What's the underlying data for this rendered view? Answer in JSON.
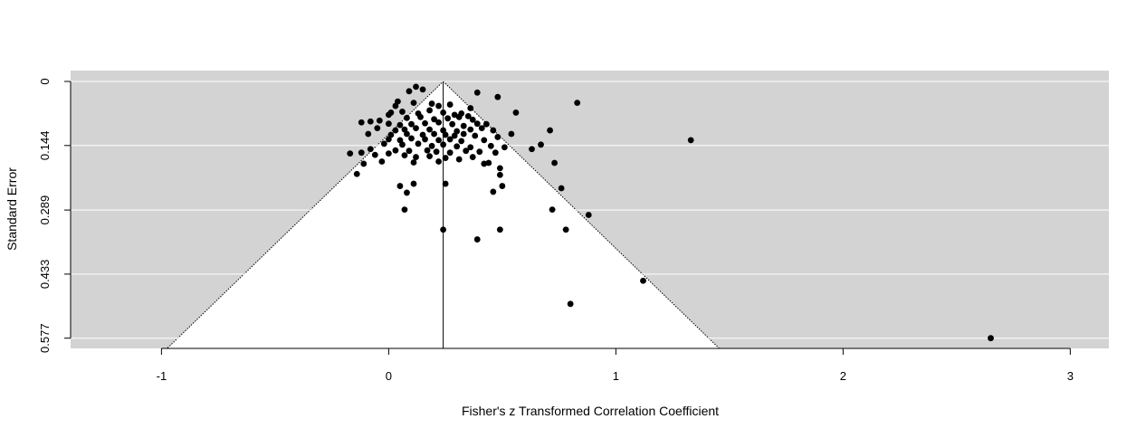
{
  "chart_data": {
    "type": "scatter",
    "subtype": "funnel-plot",
    "title": "",
    "xlabel": "Fisher's z Transformed Correlation Coefficient",
    "ylabel": "Standard Error",
    "xlim": [
      -1.4,
      3.17
    ],
    "ylim": [
      0,
      0.6
    ],
    "y_reversed": true,
    "x_ticks": [
      -1,
      0,
      1,
      2,
      3
    ],
    "x_tick_labels": [
      "-1",
      "0",
      "1",
      "2",
      "3"
    ],
    "y_ticks": [
      0,
      0.144,
      0.289,
      0.433,
      0.577
    ],
    "y_tick_labels": [
      "0",
      "0.144",
      "0.289",
      "0.433",
      "0.577"
    ],
    "summary_estimate": 0.24,
    "funnel_z": 1.96,
    "grid": true,
    "colors": {
      "panel_background": "#d3d3d3",
      "funnel_interior": "#ffffff",
      "gridline": "#ffffff",
      "points": "#000000"
    },
    "points": [
      {
        "x": 0.12,
        "y": 0.012
      },
      {
        "x": 0.15,
        "y": 0.018
      },
      {
        "x": 0.09,
        "y": 0.022
      },
      {
        "x": 0.39,
        "y": 0.025
      },
      {
        "x": 0.48,
        "y": 0.035
      },
      {
        "x": 0.83,
        "y": 0.048
      },
      {
        "x": 0.04,
        "y": 0.045
      },
      {
        "x": 0.03,
        "y": 0.055
      },
      {
        "x": 0.11,
        "y": 0.048
      },
      {
        "x": 0.19,
        "y": 0.05
      },
      {
        "x": 0.22,
        "y": 0.055
      },
      {
        "x": 0.27,
        "y": 0.052
      },
      {
        "x": 0.01,
        "y": 0.07
      },
      {
        "x": 0.06,
        "y": 0.068
      },
      {
        "x": 0.13,
        "y": 0.072
      },
      {
        "x": 0.18,
        "y": 0.065
      },
      {
        "x": 0.24,
        "y": 0.07
      },
      {
        "x": 0.29,
        "y": 0.075
      },
      {
        "x": 0.32,
        "y": 0.072
      },
      {
        "x": 0.36,
        "y": 0.06
      },
      {
        "x": 0.56,
        "y": 0.07
      },
      {
        "x": 0.0,
        "y": 0.075
      },
      {
        "x": 0.08,
        "y": 0.082
      },
      {
        "x": 0.14,
        "y": 0.08
      },
      {
        "x": 0.2,
        "y": 0.085
      },
      {
        "x": 0.26,
        "y": 0.083
      },
      {
        "x": 0.31,
        "y": 0.08
      },
      {
        "x": 0.35,
        "y": 0.078
      },
      {
        "x": 0.37,
        "y": 0.086
      },
      {
        "x": -0.04,
        "y": 0.088
      },
      {
        "x": -0.08,
        "y": 0.09
      },
      {
        "x": -0.12,
        "y": 0.092
      },
      {
        "x": 0.0,
        "y": 0.095
      },
      {
        "x": 0.05,
        "y": 0.098
      },
      {
        "x": 0.1,
        "y": 0.096
      },
      {
        "x": 0.16,
        "y": 0.094
      },
      {
        "x": 0.22,
        "y": 0.092
      },
      {
        "x": 0.28,
        "y": 0.096
      },
      {
        "x": 0.33,
        "y": 0.1
      },
      {
        "x": 0.39,
        "y": 0.095
      },
      {
        "x": 0.43,
        "y": 0.096
      },
      {
        "x": -0.05,
        "y": 0.105
      },
      {
        "x": 0.03,
        "y": 0.11
      },
      {
        "x": 0.07,
        "y": 0.108
      },
      {
        "x": 0.12,
        "y": 0.105
      },
      {
        "x": 0.18,
        "y": 0.108
      },
      {
        "x": 0.24,
        "y": 0.11
      },
      {
        "x": 0.3,
        "y": 0.112
      },
      {
        "x": 0.36,
        "y": 0.108
      },
      {
        "x": 0.41,
        "y": 0.105
      },
      {
        "x": 0.46,
        "y": 0.11
      },
      {
        "x": 0.71,
        "y": 0.11
      },
      {
        "x": -0.09,
        "y": 0.118
      },
      {
        "x": 0.01,
        "y": 0.12
      },
      {
        "x": 0.08,
        "y": 0.118
      },
      {
        "x": 0.15,
        "y": 0.12
      },
      {
        "x": 0.2,
        "y": 0.118
      },
      {
        "x": 0.25,
        "y": 0.12
      },
      {
        "x": 0.29,
        "y": 0.122
      },
      {
        "x": 0.33,
        "y": 0.118
      },
      {
        "x": 0.38,
        "y": 0.122
      },
      {
        "x": 0.48,
        "y": 0.125
      },
      {
        "x": 0.54,
        "y": 0.118
      },
      {
        "x": 0.0,
        "y": 0.13
      },
      {
        "x": 0.05,
        "y": 0.132
      },
      {
        "x": 0.1,
        "y": 0.128
      },
      {
        "x": 0.16,
        "y": 0.13
      },
      {
        "x": 0.22,
        "y": 0.132
      },
      {
        "x": 0.27,
        "y": 0.13
      },
      {
        "x": 0.32,
        "y": 0.134
      },
      {
        "x": 0.42,
        "y": 0.132
      },
      {
        "x": 0.67,
        "y": 0.142
      },
      {
        "x": 1.33,
        "y": 0.132
      },
      {
        "x": -0.02,
        "y": 0.14
      },
      {
        "x": 0.06,
        "y": 0.142
      },
      {
        "x": 0.13,
        "y": 0.14
      },
      {
        "x": 0.19,
        "y": 0.145
      },
      {
        "x": 0.24,
        "y": 0.142
      },
      {
        "x": 0.3,
        "y": 0.146
      },
      {
        "x": 0.36,
        "y": 0.148
      },
      {
        "x": 0.45,
        "y": 0.145
      },
      {
        "x": 0.51,
        "y": 0.148
      },
      {
        "x": 0.63,
        "y": 0.152
      },
      {
        "x": -0.08,
        "y": 0.152
      },
      {
        "x": 0.03,
        "y": 0.155
      },
      {
        "x": 0.09,
        "y": 0.156
      },
      {
        "x": 0.17,
        "y": 0.155
      },
      {
        "x": 0.21,
        "y": 0.158
      },
      {
        "x": 0.27,
        "y": 0.16
      },
      {
        "x": 0.34,
        "y": 0.156
      },
      {
        "x": 0.4,
        "y": 0.158
      },
      {
        "x": 0.47,
        "y": 0.16
      },
      {
        "x": -0.17,
        "y": 0.162
      },
      {
        "x": -0.12,
        "y": 0.16
      },
      {
        "x": -0.06,
        "y": 0.165
      },
      {
        "x": 0.0,
        "y": 0.162
      },
      {
        "x": 0.07,
        "y": 0.166
      },
      {
        "x": 0.12,
        "y": 0.17
      },
      {
        "x": 0.18,
        "y": 0.168
      },
      {
        "x": 0.25,
        "y": 0.172
      },
      {
        "x": 0.31,
        "y": 0.175
      },
      {
        "x": 0.37,
        "y": 0.17
      },
      {
        "x": -0.03,
        "y": 0.18
      },
      {
        "x": 0.11,
        "y": 0.182
      },
      {
        "x": 0.22,
        "y": 0.18
      },
      {
        "x": 0.42,
        "y": 0.185
      },
      {
        "x": 0.44,
        "y": 0.183
      },
      {
        "x": 0.73,
        "y": 0.183
      },
      {
        "x": -0.11,
        "y": 0.185
      },
      {
        "x": -0.14,
        "y": 0.208
      },
      {
        "x": 0.49,
        "y": 0.195
      },
      {
        "x": 0.49,
        "y": 0.21
      },
      {
        "x": 0.05,
        "y": 0.235
      },
      {
        "x": 0.11,
        "y": 0.23
      },
      {
        "x": 0.25,
        "y": 0.23
      },
      {
        "x": 0.08,
        "y": 0.25
      },
      {
        "x": 0.46,
        "y": 0.248
      },
      {
        "x": 0.5,
        "y": 0.235
      },
      {
        "x": 0.76,
        "y": 0.24
      },
      {
        "x": 0.07,
        "y": 0.288
      },
      {
        "x": 0.72,
        "y": 0.288
      },
      {
        "x": 0.88,
        "y": 0.3
      },
      {
        "x": 0.24,
        "y": 0.333
      },
      {
        "x": 0.49,
        "y": 0.333
      },
      {
        "x": 0.78,
        "y": 0.333
      },
      {
        "x": 0.39,
        "y": 0.355
      },
      {
        "x": 1.12,
        "y": 0.448
      },
      {
        "x": 0.8,
        "y": 0.5
      },
      {
        "x": 2.65,
        "y": 0.577
      }
    ]
  }
}
